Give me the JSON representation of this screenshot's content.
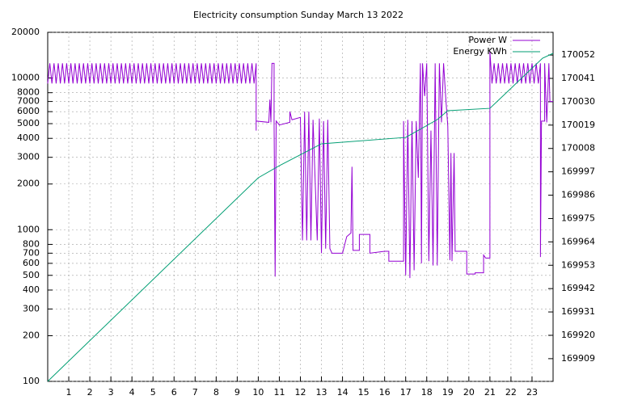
{
  "chart_data": {
    "type": "line",
    "title": "Electricity consumption Sunday March 13 2022",
    "xlim": [
      0,
      24
    ],
    "xticks": [
      1,
      2,
      3,
      4,
      5,
      6,
      7,
      8,
      9,
      10,
      11,
      12,
      13,
      14,
      15,
      16,
      17,
      18,
      19,
      20,
      21,
      22,
      23
    ],
    "ylim": [
      100,
      20000
    ],
    "log_y": true,
    "yticks": [
      100,
      200,
      300,
      400,
      500,
      600,
      700,
      800,
      1000,
      2000,
      3000,
      4000,
      5000,
      6000,
      7000,
      8000,
      10000,
      20000
    ],
    "y2lim": [
      169898.3,
      170062.7
    ],
    "y2ticks": [
      169909,
      169920,
      169931,
      169942,
      169953,
      169964,
      169975,
      169986,
      169997,
      170008,
      170019,
      170030,
      170041,
      170052
    ],
    "grid": true,
    "legend": "top-right",
    "series": [
      {
        "name": "Power W",
        "color": "#9400d3",
        "x": [
          0,
          0.1,
          0.2,
          0.3,
          0.4,
          0.5,
          0.6,
          0.7,
          0.8,
          0.9,
          1,
          1.1,
          1.2,
          1.3,
          1.4,
          1.5,
          1.6,
          1.7,
          1.8,
          1.9,
          2,
          2.1,
          2.2,
          2.3,
          2.4,
          2.5,
          2.6,
          2.7,
          2.8,
          2.9,
          3,
          3.1,
          3.2,
          3.3,
          3.4,
          3.5,
          3.6,
          3.7,
          3.8,
          3.9,
          4,
          4.1,
          4.2,
          4.3,
          4.4,
          4.5,
          4.6,
          4.7,
          4.8,
          4.9,
          5,
          5.1,
          5.2,
          5.3,
          5.4,
          5.5,
          5.6,
          5.7,
          5.8,
          5.9,
          6,
          6.1,
          6.2,
          6.3,
          6.4,
          6.5,
          6.6,
          6.7,
          6.8,
          6.9,
          7,
          7.1,
          7.2,
          7.3,
          7.4,
          7.5,
          7.6,
          7.7,
          7.8,
          7.9,
          8,
          8.1,
          8.2,
          8.3,
          8.4,
          8.5,
          8.6,
          8.7,
          8.8,
          8.9,
          9,
          9.1,
          9.2,
          9.3,
          9.4,
          9.5,
          9.6,
          9.7,
          9.8,
          9.9,
          9.9,
          9.9,
          10.5,
          10.55,
          10.6,
          10.65,
          10.75,
          10.75,
          10.8,
          10.85,
          11,
          11.5,
          11.5,
          11.6,
          12,
          12.1,
          12.2,
          12.3,
          12.4,
          12.5,
          12.6,
          12.8,
          12.9,
          13,
          13.1,
          13.2,
          13.3,
          13.4,
          13.5,
          14,
          14.2,
          14.4,
          14.45,
          14.5,
          14.8,
          14.8,
          15.3,
          15.3,
          16,
          16.2,
          16.2,
          16.9,
          16.9,
          17,
          17.1,
          17.2,
          17.3,
          17.4,
          17.5,
          17.6,
          17.7,
          17.75,
          17.8,
          17.9,
          18,
          18.1,
          18.2,
          18.3,
          18.4,
          18.5,
          18.6,
          18.7,
          18.8,
          18.9,
          19,
          19.1,
          19.15,
          19.2,
          19.3,
          19.35,
          19.9,
          19.9,
          20.3,
          20.3,
          20.7,
          20.7,
          20.8,
          21,
          21,
          21.1,
          21.2,
          21.3,
          21.4,
          21.5,
          21.6,
          21.7,
          21.8,
          21.9,
          22,
          22.1,
          22.2,
          22.3,
          22.4,
          22.5,
          22.6,
          22.7,
          22.8,
          22.9,
          23,
          23.1,
          23.2,
          23.3,
          23.4,
          23.4,
          23.45,
          23.6,
          23.6,
          23.7,
          23.8,
          23.85,
          24
        ],
        "values": [
          9200,
          12500,
          9200,
          12500,
          9200,
          12500,
          9200,
          12500,
          9200,
          12500,
          9200,
          12500,
          9200,
          12500,
          9200,
          12500,
          9200,
          12500,
          9200,
          12500,
          9200,
          12500,
          9200,
          12500,
          9200,
          12500,
          9200,
          12500,
          9200,
          12500,
          9200,
          12500,
          9200,
          12500,
          9200,
          12500,
          9200,
          12500,
          9200,
          12500,
          9200,
          12500,
          9200,
          12500,
          9200,
          12500,
          9200,
          12500,
          9200,
          12500,
          9200,
          12500,
          9200,
          12500,
          9200,
          12500,
          9200,
          12500,
          9200,
          12500,
          9200,
          12500,
          9200,
          12500,
          9200,
          12500,
          9200,
          12500,
          9200,
          12500,
          9200,
          12500,
          9200,
          12500,
          9200,
          12500,
          9200,
          12500,
          9200,
          12500,
          9200,
          12500,
          9200,
          12500,
          9200,
          12500,
          9200,
          12500,
          9200,
          12500,
          9200,
          12500,
          9200,
          12500,
          9200,
          12500,
          9200,
          12500,
          9200,
          12500,
          4500,
          5200,
          5100,
          7200,
          5100,
          12500,
          12500,
          5200,
          490,
          5200,
          4900,
          5100,
          6000,
          5300,
          5500,
          850,
          6000,
          850,
          6000,
          850,
          5300,
          850,
          5400,
          700,
          5200,
          750,
          5300,
          750,
          700,
          700,
          900,
          950,
          2600,
          730,
          730,
          930,
          930,
          700,
          720,
          720,
          620,
          620,
          5200,
          500,
          5300,
          480,
          5200,
          540,
          5200,
          2200,
          12500,
          600,
          12500,
          7600,
          12500,
          620,
          4500,
          580,
          12500,
          580,
          12500,
          5100,
          12500,
          7500,
          4800,
          630,
          3200,
          620,
          3200,
          720,
          720,
          510,
          510,
          520,
          520,
          680,
          650,
          650,
          15000,
          9200,
          12500,
          9200,
          12500,
          9200,
          12500,
          9200,
          12500,
          9200,
          12500,
          9200,
          12500,
          9200,
          12500,
          9200,
          12500,
          9200,
          12500,
          9200,
          12500,
          9200,
          12500,
          9200,
          12500,
          660,
          5200,
          5200,
          12500,
          5100,
          12500,
          7000,
          7000
        ]
      },
      {
        "name": "Energy KWh",
        "color": "#009e73",
        "axis": "y2",
        "x": [
          0,
          10,
          11,
          13,
          17,
          18.5,
          19,
          21,
          23.5,
          24
        ],
        "values": [
          169898.3,
          169994.2,
          169999.9,
          170010.2,
          170013.2,
          170021.6,
          170025.8,
          170026.9,
          170050.5,
          170052.8
        ]
      }
    ]
  }
}
